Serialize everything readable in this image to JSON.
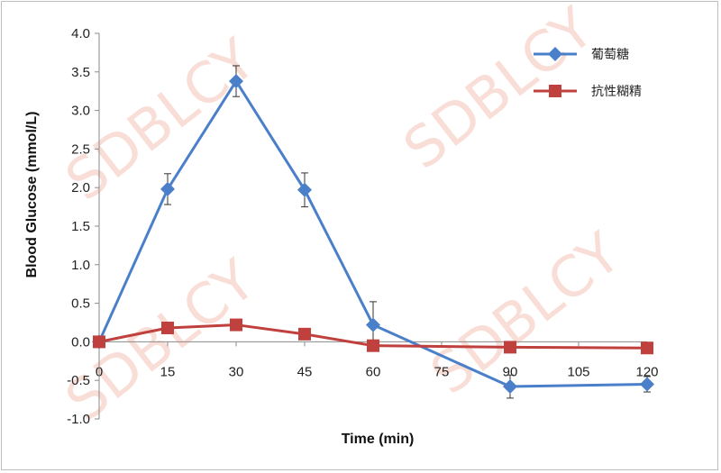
{
  "chart_data": {
    "type": "line",
    "xlabel": "Time (min)",
    "ylabel": "Blood Glucose (mmol/L)",
    "xlim": [
      0,
      120
    ],
    "ylim": [
      -1.0,
      4.0
    ],
    "x_ticks": [
      "0",
      "15",
      "30",
      "45",
      "60",
      "75",
      "90",
      "105",
      "120"
    ],
    "y_ticks": [
      "4.0",
      "3.5",
      "3.0",
      "2.5",
      "2.0",
      "1.5",
      "1.0",
      "0.5",
      "0.0",
      "-0.5",
      "-1.0"
    ],
    "legend_position": "top-right",
    "series": [
      {
        "name": "葡萄糖",
        "color": "#4a7fc9",
        "marker": "diamond",
        "x": [
          0,
          15,
          30,
          45,
          60,
          90,
          120
        ],
        "y": [
          0.0,
          1.98,
          3.38,
          1.97,
          0.22,
          -0.58,
          -0.55
        ],
        "err": [
          0.0,
          0.2,
          0.2,
          0.22,
          0.3,
          0.15,
          0.1
        ]
      },
      {
        "name": "抗性糊精",
        "color": "#c0403d",
        "marker": "square",
        "x": [
          0,
          15,
          30,
          45,
          60,
          90,
          120
        ],
        "y": [
          0.0,
          0.18,
          0.22,
          0.1,
          -0.05,
          -0.07,
          -0.08
        ],
        "err": [
          0,
          0,
          0,
          0,
          0,
          0,
          0
        ]
      }
    ]
  },
  "watermark": "SDBLCY"
}
